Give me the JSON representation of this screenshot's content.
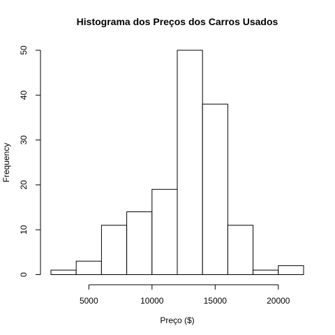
{
  "chart_data": {
    "type": "bar",
    "title": "Histograma dos Preços dos Carros Usados",
    "xlabel": "Preço ($)",
    "ylabel": "Frequency",
    "bins": [
      {
        "start": 2000,
        "end": 4000,
        "count": 1
      },
      {
        "start": 4000,
        "end": 6000,
        "count": 3
      },
      {
        "start": 6000,
        "end": 8000,
        "count": 11
      },
      {
        "start": 8000,
        "end": 10000,
        "count": 14
      },
      {
        "start": 10000,
        "end": 12000,
        "count": 19
      },
      {
        "start": 12000,
        "end": 14000,
        "count": 50
      },
      {
        "start": 14000,
        "end": 16000,
        "count": 38
      },
      {
        "start": 16000,
        "end": 18000,
        "count": 11
      },
      {
        "start": 18000,
        "end": 20000,
        "count": 1
      },
      {
        "start": 20000,
        "end": 22000,
        "count": 2
      }
    ],
    "xticks": [
      {
        "value": 5000,
        "label": "5000"
      },
      {
        "value": 10000,
        "label": "10000"
      },
      {
        "value": 15000,
        "label": "15000"
      },
      {
        "value": 20000,
        "label": "20000"
      }
    ],
    "yticks": [
      {
        "value": 0,
        "label": "0"
      },
      {
        "value": 10,
        "label": "10"
      },
      {
        "value": 20,
        "label": "20"
      },
      {
        "value": 30,
        "label": "30"
      },
      {
        "value": 40,
        "label": "40"
      },
      {
        "value": 50,
        "label": "50"
      }
    ],
    "xlim": [
      2000,
      22000
    ],
    "ylim": [
      0,
      50
    ],
    "grid": false,
    "bar_fill": "#ffffff",
    "bar_stroke": "#000000"
  }
}
